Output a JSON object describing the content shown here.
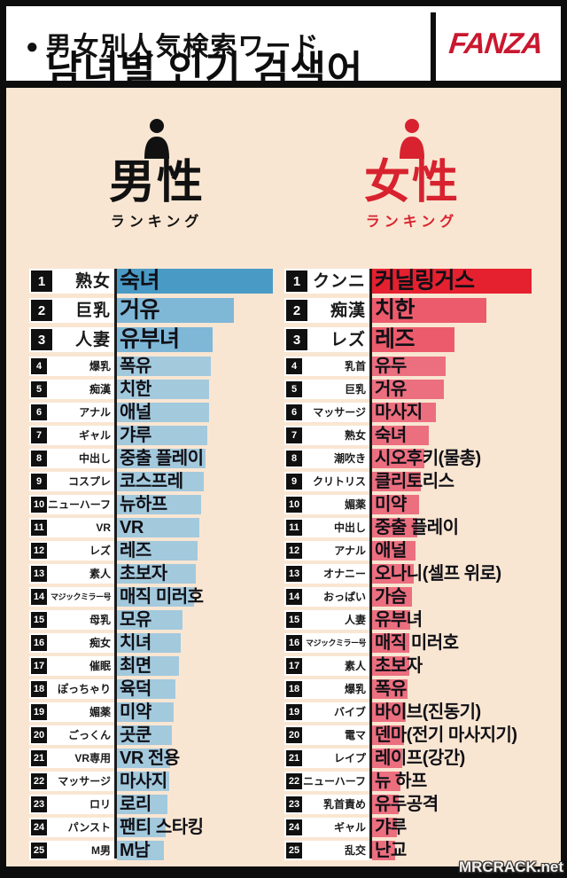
{
  "header": {
    "bullet": "●",
    "title_jp": "男女別人気検索ワード",
    "title_ko": "남녀별 인기 검색어",
    "logo": "FANZA"
  },
  "watermark": "MRCRACK.net",
  "colors": {
    "background_cream": "#f9e6d2",
    "frame_black": "#0d0d0d",
    "logo_red": "#c9182f",
    "male_accent": "#111111",
    "female_accent": "#d8222f"
  },
  "columns": [
    {
      "id": "male",
      "title": "男性",
      "subtitle": "ランキング",
      "icon": "male-person-icon",
      "accent": "#111111",
      "bar_colors": {
        "rank1": "#4a9ac6",
        "rank2_3": "#7fb7d7",
        "rest": "#a3c9dd"
      },
      "items": [
        {
          "rank": 1,
          "jp": "熟女",
          "ko": "숙녀",
          "bar_pct": 93
        },
        {
          "rank": 2,
          "jp": "巨乳",
          "ko": "거유",
          "bar_pct": 70
        },
        {
          "rank": 3,
          "jp": "人妻",
          "ko": "유부녀",
          "bar_pct": 57
        },
        {
          "rank": 4,
          "jp": "爆乳",
          "ko": "폭유",
          "bar_pct": 56
        },
        {
          "rank": 5,
          "jp": "痴漢",
          "ko": "치한",
          "bar_pct": 55
        },
        {
          "rank": 6,
          "jp": "アナル",
          "ko": "애널",
          "bar_pct": 55
        },
        {
          "rank": 7,
          "jp": "ギャル",
          "ko": "갸루",
          "bar_pct": 54
        },
        {
          "rank": 8,
          "jp": "中出し",
          "ko": "중출 플레이",
          "bar_pct": 53
        },
        {
          "rank": 9,
          "jp": "コスプレ",
          "ko": "코스프레",
          "bar_pct": 52
        },
        {
          "rank": 10,
          "jp": "ニューハーフ",
          "ko": "뉴하프",
          "bar_pct": 50
        },
        {
          "rank": 11,
          "jp": "VR",
          "ko": "VR",
          "bar_pct": 49
        },
        {
          "rank": 12,
          "jp": "レズ",
          "ko": "레즈",
          "bar_pct": 48
        },
        {
          "rank": 13,
          "jp": "素人",
          "ko": "초보자",
          "bar_pct": 47
        },
        {
          "rank": 14,
          "jp": "マジックミラー号",
          "ko": "매직 미러호",
          "bar_pct": 46
        },
        {
          "rank": 15,
          "jp": "母乳",
          "ko": "모유",
          "bar_pct": 39
        },
        {
          "rank": 16,
          "jp": "痴女",
          "ko": "치녀",
          "bar_pct": 38
        },
        {
          "rank": 17,
          "jp": "催眠",
          "ko": "최면",
          "bar_pct": 37
        },
        {
          "rank": 18,
          "jp": "ぽっちゃり",
          "ko": "육덕",
          "bar_pct": 35
        },
        {
          "rank": 19,
          "jp": "媚薬",
          "ko": "미약",
          "bar_pct": 34
        },
        {
          "rank": 20,
          "jp": "ごっくん",
          "ko": "곳쿤",
          "bar_pct": 33
        },
        {
          "rank": 21,
          "jp": "VR専用",
          "ko": "VR 전용",
          "bar_pct": 32
        },
        {
          "rank": 22,
          "jp": "マッサージ",
          "ko": "마사지",
          "bar_pct": 31
        },
        {
          "rank": 23,
          "jp": "ロリ",
          "ko": "로리",
          "bar_pct": 30
        },
        {
          "rank": 24,
          "jp": "パンスト",
          "ko": "팬티 스타킹",
          "bar_pct": 29
        },
        {
          "rank": 25,
          "jp": "M男",
          "ko": "M남",
          "bar_pct": 28
        }
      ]
    },
    {
      "id": "female",
      "title": "女性",
      "subtitle": "ランキング",
      "icon": "female-person-icon",
      "accent": "#d8222f",
      "bar_colors": {
        "rank1": "#e5202f",
        "rank2_3": "#ec5b6c",
        "rest": "#ec6f7f"
      },
      "items": [
        {
          "rank": 1,
          "jp": "クンニ",
          "ko": "커닐링거스",
          "bar_pct": 95
        },
        {
          "rank": 2,
          "jp": "痴漢",
          "ko": "치한",
          "bar_pct": 68
        },
        {
          "rank": 3,
          "jp": "レズ",
          "ko": "레즈",
          "bar_pct": 49
        },
        {
          "rank": 4,
          "jp": "乳首",
          "ko": "유두",
          "bar_pct": 44
        },
        {
          "rank": 5,
          "jp": "巨乳",
          "ko": "거유",
          "bar_pct": 43
        },
        {
          "rank": 6,
          "jp": "マッサージ",
          "ko": "마사지",
          "bar_pct": 38
        },
        {
          "rank": 7,
          "jp": "熟女",
          "ko": "숙녀",
          "bar_pct": 34
        },
        {
          "rank": 8,
          "jp": "潮吹き",
          "ko": "시오후키(물총)",
          "bar_pct": 31
        },
        {
          "rank": 9,
          "jp": "クリトリス",
          "ko": "클리토리스",
          "bar_pct": 29
        },
        {
          "rank": 10,
          "jp": "媚薬",
          "ko": "미약",
          "bar_pct": 28
        },
        {
          "rank": 11,
          "jp": "中出し",
          "ko": "중출 플레이",
          "bar_pct": 27
        },
        {
          "rank": 12,
          "jp": "アナル",
          "ko": "애널",
          "bar_pct": 26
        },
        {
          "rank": 13,
          "jp": "オナニー",
          "ko": "오나니(셀프 위로)",
          "bar_pct": 25
        },
        {
          "rank": 14,
          "jp": "おっぱい",
          "ko": "가슴",
          "bar_pct": 24
        },
        {
          "rank": 15,
          "jp": "人妻",
          "ko": "유부녀",
          "bar_pct": 23
        },
        {
          "rank": 16,
          "jp": "マジックミラー号",
          "ko": "매직 미러호",
          "bar_pct": 22
        },
        {
          "rank": 17,
          "jp": "素人",
          "ko": "초보자",
          "bar_pct": 22
        },
        {
          "rank": 18,
          "jp": "爆乳",
          "ko": "폭유",
          "bar_pct": 21
        },
        {
          "rank": 19,
          "jp": "バイブ",
          "ko": "바이브(진동기)",
          "bar_pct": 20
        },
        {
          "rank": 20,
          "jp": "電マ",
          "ko": "덴마(전기 마사지기)",
          "bar_pct": 19
        },
        {
          "rank": 21,
          "jp": "レイプ",
          "ko": "레이프(강간)",
          "bar_pct": 18
        },
        {
          "rank": 22,
          "jp": "ニューハーフ",
          "ko": "뉴 하프",
          "bar_pct": 17
        },
        {
          "rank": 23,
          "jp": "乳首責め",
          "ko": "유두공격",
          "bar_pct": 16
        },
        {
          "rank": 24,
          "jp": "ギャル",
          "ko": "갸루",
          "bar_pct": 15
        },
        {
          "rank": 25,
          "jp": "乱交",
          "ko": "난교",
          "bar_pct": 14
        }
      ]
    }
  ],
  "chart_data": [
    {
      "type": "bar",
      "orientation": "horizontal",
      "title": "男性 ランキング (Male ranking of popular search words)",
      "categories": [
        "熟女",
        "巨乳",
        "人妻",
        "爆乳",
        "痴漢",
        "アナル",
        "ギャル",
        "中出し",
        "コスプレ",
        "ニューハーフ",
        "VR",
        "レズ",
        "素人",
        "マジックミラー号",
        "母乳",
        "痴女",
        "催眠",
        "ぽっちゃり",
        "媚薬",
        "ごっくん",
        "VR専用",
        "マッサージ",
        "ロリ",
        "パンスト",
        "M男"
      ],
      "labels_ko": [
        "숙녀",
        "거유",
        "유부녀",
        "폭유",
        "치한",
        "애널",
        "갸루",
        "중출 플레이",
        "코스프레",
        "뉴하프",
        "VR",
        "레즈",
        "초보자",
        "매직 미러호",
        "모유",
        "치녀",
        "최면",
        "육덕",
        "미약",
        "곳쿤",
        "VR 전용",
        "마사지",
        "로리",
        "팬티 스타킹",
        "M남"
      ],
      "values": [
        93,
        70,
        57,
        56,
        55,
        55,
        54,
        53,
        52,
        50,
        49,
        48,
        47,
        46,
        39,
        38,
        37,
        35,
        34,
        33,
        32,
        31,
        30,
        29,
        28
      ],
      "note": "No numeric axis shown; values are bar lengths as % of column width",
      "bar_color": "blue"
    },
    {
      "type": "bar",
      "orientation": "horizontal",
      "title": "女性 ランキング (Female ranking of popular search words)",
      "categories": [
        "クンニ",
        "痴漢",
        "レズ",
        "乳首",
        "巨乳",
        "マッサージ",
        "熟女",
        "潮吹き",
        "クリトリス",
        "媚薬",
        "中出し",
        "アナル",
        "オナニー",
        "おっぱい",
        "人妻",
        "マジックミラー号",
        "素人",
        "爆乳",
        "バイブ",
        "電マ",
        "レイプ",
        "ニューハーフ",
        "乳首責め",
        "ギャル",
        "乱交"
      ],
      "labels_ko": [
        "커닐링거스",
        "치한",
        "레즈",
        "유두",
        "거유",
        "마사지",
        "숙녀",
        "시오후키(물총)",
        "클리토리스",
        "미약",
        "중출 플레이",
        "애널",
        "오나니(셀프 위로)",
        "가슴",
        "유부녀",
        "매직 미러호",
        "초보자",
        "폭유",
        "바이브(진동기)",
        "덴마(전기 마사지기)",
        "레이프(강간)",
        "뉴 하프",
        "유두공격",
        "갸루",
        "난교"
      ],
      "values": [
        95,
        68,
        49,
        44,
        43,
        38,
        34,
        31,
        29,
        28,
        27,
        26,
        25,
        24,
        23,
        22,
        22,
        21,
        20,
        19,
        18,
        17,
        16,
        15,
        14
      ],
      "note": "No numeric axis shown; values are bar lengths as % of column width",
      "bar_color": "red"
    }
  ]
}
